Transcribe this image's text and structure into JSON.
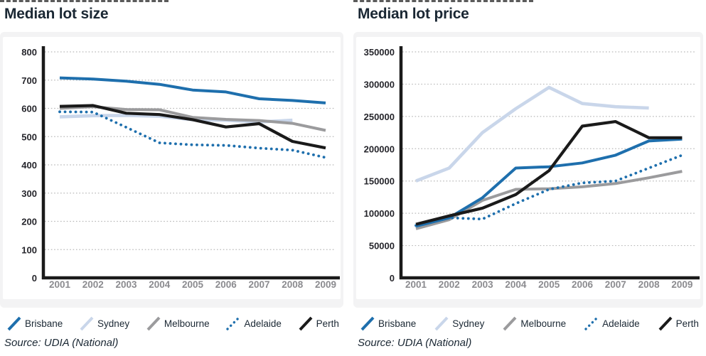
{
  "source_label": "Source: UDIA (National)",
  "legend": [
    "Brisbane",
    "Sydney",
    "Melbourne",
    "Adelaide",
    "Perth"
  ],
  "colors": {
    "brisbane": "#1e6fad",
    "sydney": "#c9d6ea",
    "melbourne": "#9b9b9d",
    "adelaide": "#1e6fad",
    "perth": "#1a1a1a",
    "title_text": "#1a2733",
    "gridline": "#b9b9b9",
    "axis": "#1a1a1a",
    "year_labels": "#8b8b8f"
  },
  "chart_data": [
    {
      "type": "line",
      "title": "Median lot size",
      "x": [
        2001,
        2002,
        2003,
        2004,
        2005,
        2006,
        2007,
        2008,
        2009
      ],
      "ylim": [
        0,
        800
      ],
      "ytick_step": 100,
      "grid": "horizontal-dotted",
      "legend_position": "below",
      "series": [
        {
          "name": "Brisbane",
          "color": "#1e6fad",
          "dotted": false,
          "values": [
            708,
            704,
            696,
            685,
            665,
            658,
            634,
            628,
            619
          ]
        },
        {
          "name": "Sydney",
          "color": "#c9d6ea",
          "dotted": false,
          "values": [
            570,
            574,
            575,
            572,
            560,
            558,
            552,
            558
          ]
        },
        {
          "name": "Melbourne",
          "color": "#9b9b9d",
          "dotted": false,
          "values": [
            600,
            606,
            596,
            595,
            568,
            561,
            557,
            547,
            522
          ]
        },
        {
          "name": "Adelaide",
          "color": "#1e6fad",
          "dotted": true,
          "values": [
            588,
            587,
            533,
            478,
            471,
            469,
            459,
            452,
            426
          ]
        },
        {
          "name": "Perth",
          "color": "#1a1a1a",
          "dotted": false,
          "values": [
            607,
            610,
            583,
            578,
            560,
            534,
            546,
            483,
            460
          ]
        }
      ]
    },
    {
      "type": "line",
      "title": "Median lot price",
      "x": [
        2001,
        2002,
        2003,
        2004,
        2005,
        2006,
        2007,
        2008,
        2009
      ],
      "ylim": [
        0,
        350000
      ],
      "ytick_step": 50000,
      "grid": "horizontal-dotted",
      "legend_position": "below",
      "series": [
        {
          "name": "Brisbane",
          "color": "#1e6fad",
          "dotted": false,
          "values": [
            80000,
            93000,
            124000,
            170000,
            172000,
            178000,
            190000,
            212000,
            215000
          ]
        },
        {
          "name": "Sydney",
          "color": "#c9d6ea",
          "dotted": false,
          "values": [
            150000,
            170000,
            225000,
            262000,
            295000,
            270000,
            265000,
            263000
          ]
        },
        {
          "name": "Melbourne",
          "color": "#9b9b9d",
          "dotted": false,
          "values": [
            76000,
            90000,
            120000,
            137000,
            138000,
            141000,
            146000,
            155000,
            165000
          ]
        },
        {
          "name": "Adelaide",
          "color": "#1e6fad",
          "dotted": true,
          "values": [
            81000,
            93000,
            91000,
            115000,
            137000,
            147000,
            150000,
            170000,
            190000
          ]
        },
        {
          "name": "Perth",
          "color": "#1a1a1a",
          "dotted": false,
          "values": [
            83000,
            96000,
            108000,
            129000,
            166000,
            235000,
            242000,
            217000,
            217000
          ]
        }
      ]
    }
  ]
}
